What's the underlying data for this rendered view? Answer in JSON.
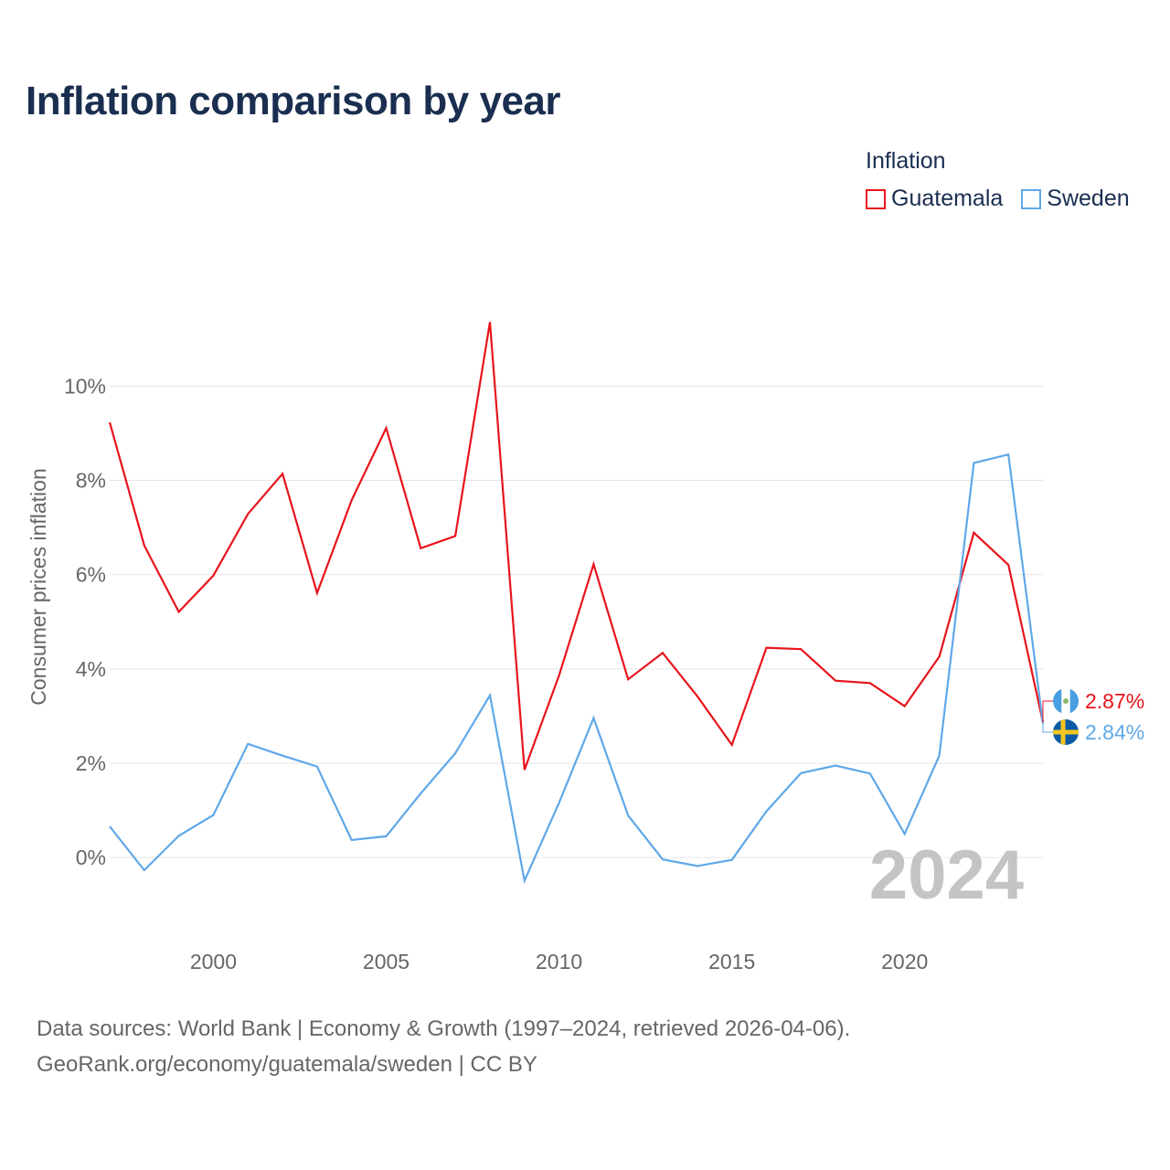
{
  "title": "Inflation comparison by year",
  "legend": {
    "title": "Inflation",
    "items": [
      {
        "label": "Guatemala",
        "color": "#e8141c"
      },
      {
        "label": "Sweden",
        "color": "#5fa8e8"
      }
    ]
  },
  "chart_data": {
    "type": "line",
    "title": "Inflation comparison by year",
    "xlabel": "",
    "ylabel": "Consumer prices inflation",
    "xlim": [
      1997,
      2024
    ],
    "ylim": [
      -1.2,
      12.8
    ],
    "x": [
      1997,
      1998,
      1999,
      2000,
      2001,
      2002,
      2003,
      2004,
      2005,
      2006,
      2007,
      2008,
      2009,
      2010,
      2011,
      2012,
      2013,
      2014,
      2015,
      2016,
      2017,
      2018,
      2019,
      2020,
      2021,
      2022,
      2023,
      2024
    ],
    "x_ticks": [
      2000,
      2005,
      2010,
      2015,
      2020
    ],
    "y_ticks": [
      0,
      2,
      4,
      6,
      8,
      10
    ],
    "y_tick_labels": [
      "0%",
      "2%",
      "4%",
      "6%",
      "8%",
      "10%"
    ],
    "grid": true,
    "year_watermark": "2024",
    "series": [
      {
        "name": "Guatemala",
        "color": "#e8141c",
        "end_label": "2.87%",
        "values": [
          9.23,
          6.62,
          5.21,
          5.98,
          7.29,
          8.14,
          5.61,
          7.58,
          9.11,
          6.56,
          6.82,
          11.36,
          1.86,
          3.86,
          6.22,
          3.78,
          4.34,
          3.42,
          2.39,
          4.45,
          4.42,
          3.75,
          3.7,
          3.21,
          4.26,
          6.89,
          6.21,
          2.87
        ]
      },
      {
        "name": "Sweden",
        "color": "#5fa8e8",
        "end_label": "2.84%",
        "values": [
          0.66,
          -0.27,
          0.46,
          0.9,
          2.41,
          2.16,
          1.93,
          0.37,
          0.45,
          1.36,
          2.21,
          3.44,
          -0.49,
          1.16,
          2.96,
          0.89,
          -0.04,
          -0.18,
          -0.05,
          0.98,
          1.79,
          1.95,
          1.78,
          0.5,
          2.16,
          8.37,
          8.55,
          2.84
        ]
      }
    ]
  },
  "footer": {
    "line1": "Data sources: World Bank | Economy & Growth (1997–2024, retrieved 2026-04-06).",
    "line2": "GeoRank.org/economy/guatemala/sweden | CC BY"
  }
}
